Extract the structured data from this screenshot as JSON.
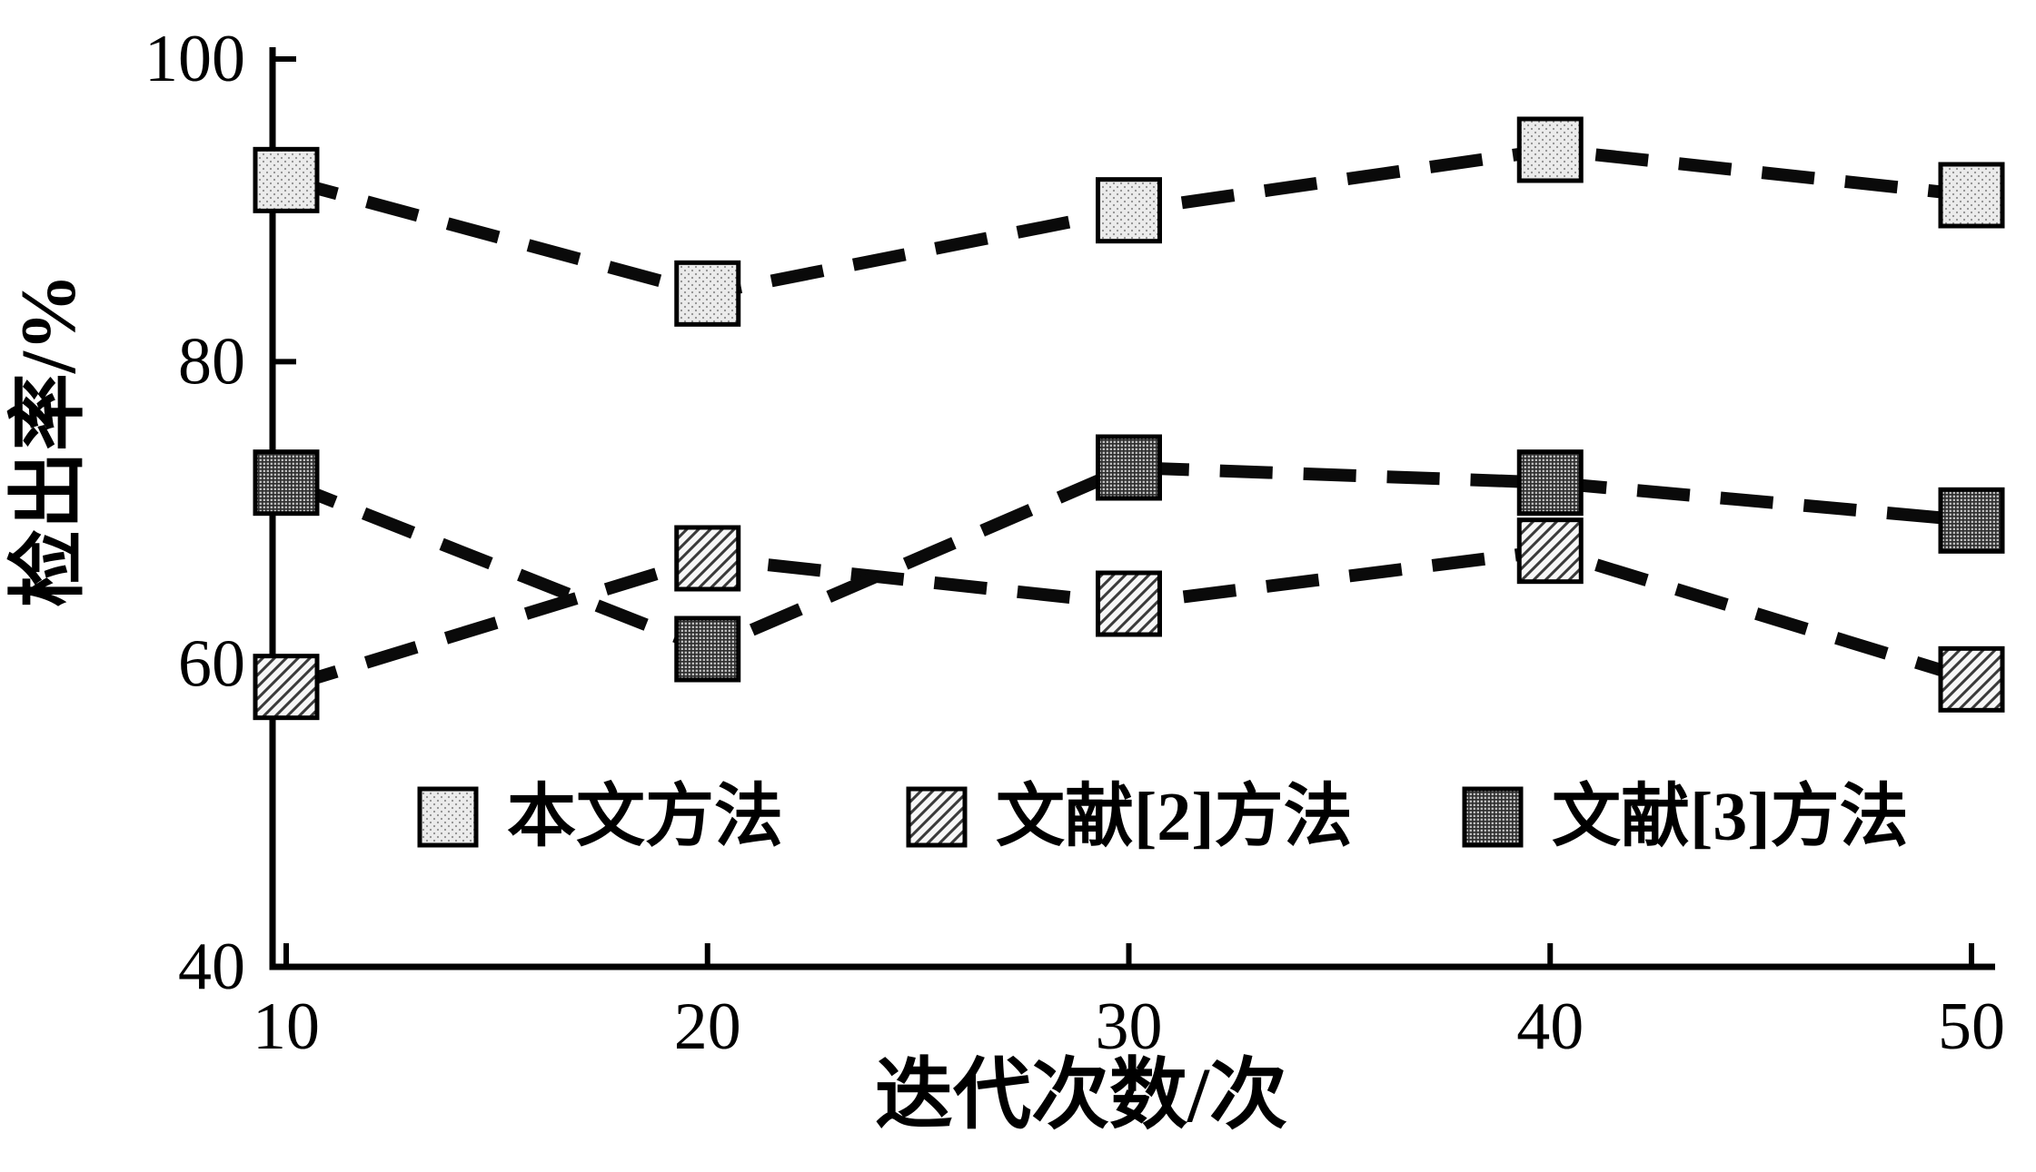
{
  "figure": {
    "background": "#ffffff",
    "axis_color": "#000000"
  },
  "chart_data": {
    "type": "line",
    "title": "",
    "xlabel": "迭代次数/次",
    "ylabel": "检出率/%",
    "x": [
      10,
      20,
      30,
      40,
      50
    ],
    "xticks": [
      10,
      20,
      30,
      40,
      50
    ],
    "yticks": [
      40,
      60,
      80,
      100
    ],
    "xlim": [
      10,
      50
    ],
    "ylim": [
      40,
      100
    ],
    "grid": false,
    "legend_position": "inside-bottom",
    "line_style": "dashed",
    "line_color": "#0a0a0a",
    "marker_shape": "square",
    "series": [
      {
        "name": "本文方法",
        "pattern": "stipple",
        "values": [
          92,
          84.5,
          90,
          94,
          91
        ]
      },
      {
        "name": "文献[2]方法",
        "pattern": "diagonal",
        "values": [
          58.5,
          67,
          64,
          67.5,
          59
        ]
      },
      {
        "name": "文献[3]方法",
        "pattern": "crosshatch",
        "values": [
          72,
          61,
          73,
          72,
          69.5
        ]
      }
    ]
  }
}
